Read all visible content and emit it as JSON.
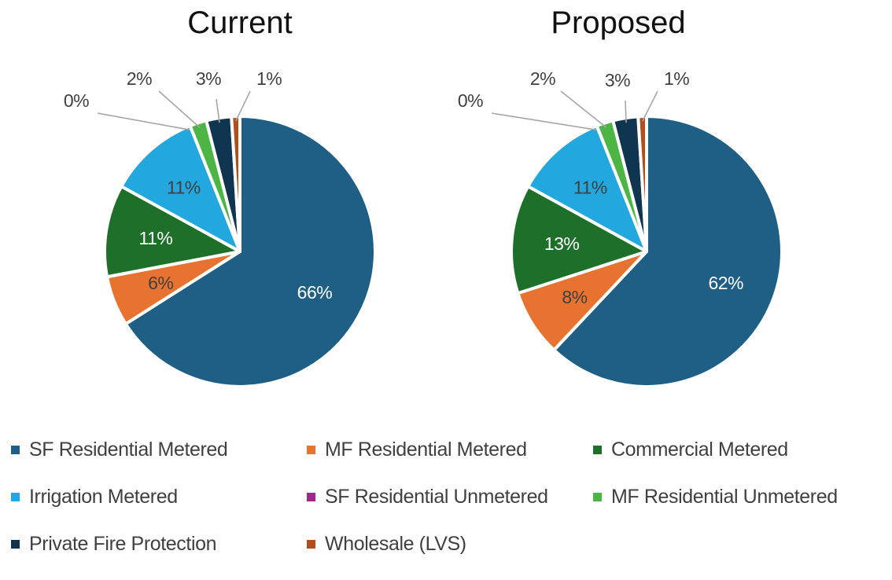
{
  "chart_data": [
    {
      "type": "pie",
      "title": "Current",
      "categories": [
        "SF Residential Metered",
        "MF Residential Metered",
        "Commercial Metered",
        "Irrigation Metered",
        "SF Residential Unmetered",
        "MF Residential Unmetered",
        "Private Fire Protection",
        "Wholesale (LVS)"
      ],
      "values": [
        66,
        6,
        11,
        11,
        0,
        2,
        3,
        1
      ],
      "data_labels": [
        "66%",
        "6%",
        "11%",
        "11%",
        "0%",
        "2%",
        "3%",
        "1%"
      ]
    },
    {
      "type": "pie",
      "title": "Proposed",
      "categories": [
        "SF Residential Metered",
        "MF Residential Metered",
        "Commercial Metered",
        "Irrigation Metered",
        "SF Residential Unmetered",
        "MF Residential Unmetered",
        "Private Fire Protection",
        "Wholesale (LVS)"
      ],
      "values": [
        62,
        8,
        13,
        11,
        0,
        2,
        3,
        1
      ],
      "data_labels": [
        "62%",
        "8%",
        "13%",
        "11%",
        "0%",
        "2%",
        "3%",
        "1%"
      ]
    }
  ],
  "legend": {
    "placement": "bottom",
    "rows": [
      [
        {
          "label": "SF Residential Metered",
          "color": "#1f5f86"
        },
        {
          "label": "MF Residential Metered",
          "color": "#e8722f"
        },
        {
          "label": "Commercial Metered",
          "color": "#1e6f2a"
        }
      ],
      [
        {
          "label": "Irrigation Metered",
          "color": "#22a7de"
        },
        {
          "label": "SF Residential Unmetered",
          "color": "#a0268f"
        },
        {
          "label": "MF Residential Unmetered",
          "color": "#4cb544"
        }
      ],
      [
        {
          "label": "Private Fire Protection",
          "color": "#0f3550"
        },
        {
          "label": "Wholesale (LVS)",
          "color": "#b04f1b"
        }
      ]
    ]
  },
  "series_colors": [
    "#1f5f86",
    "#e8722f",
    "#1e6f2a",
    "#22a7de",
    "#a0268f",
    "#4cb544",
    "#0f3550",
    "#b04f1b"
  ],
  "inside_label_colors": [
    "#ffffff",
    "#404040",
    "#ffffff",
    "#404040",
    "#404040",
    "#404040",
    "#404040",
    "#404040"
  ]
}
